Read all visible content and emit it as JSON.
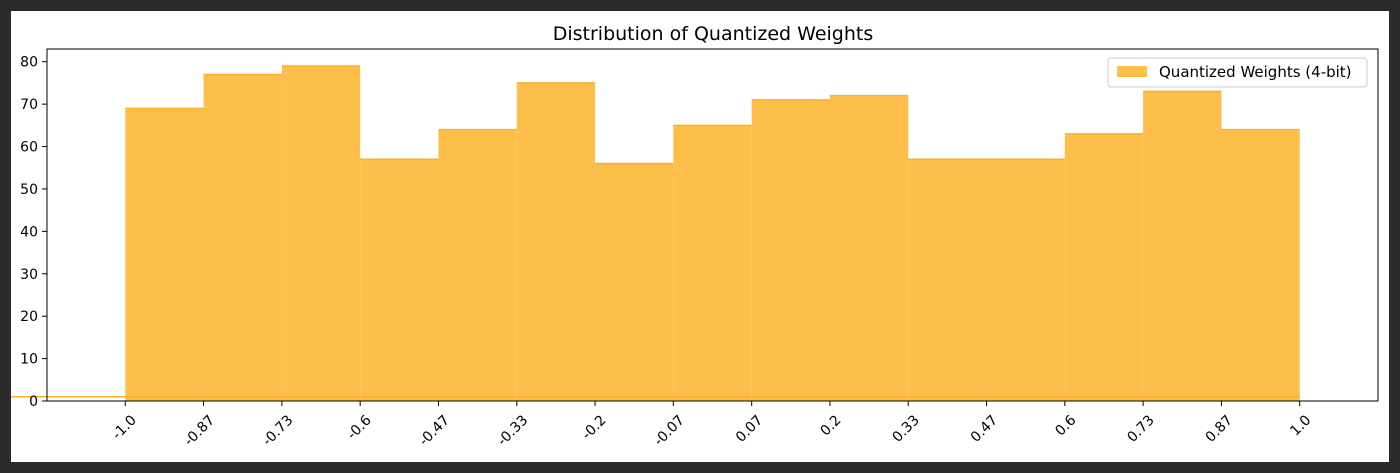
{
  "chart_data": {
    "type": "bar",
    "title": "Distribution of Quantized Weights",
    "xlabel": "",
    "ylabel": "",
    "bin_edges": [
      -1.0,
      -0.8667,
      -0.7333,
      -0.6,
      -0.4667,
      -0.3333,
      -0.2,
      -0.0667,
      0.0667,
      0.2,
      0.3333,
      0.4667,
      0.6,
      0.7333,
      0.8667,
      1.0
    ],
    "values": [
      69,
      77,
      79,
      57,
      64,
      75,
      56,
      65,
      71,
      72,
      57,
      57,
      63,
      73,
      64,
      1
    ],
    "series": [
      {
        "name": "Quantized Weights (4-bit)",
        "values": [
          69,
          77,
          79,
          57,
          64,
          75,
          56,
          65,
          71,
          72,
          57,
          57,
          63,
          73,
          64,
          1
        ]
      }
    ],
    "xticks": [
      -1.0,
      -0.8667,
      -0.7333,
      -0.6,
      -0.4667,
      -0.3333,
      -0.2,
      -0.0667,
      0.0667,
      0.2,
      0.3333,
      0.4667,
      0.6,
      0.7333,
      0.8667,
      1.0
    ],
    "xtick_labels": [
      "-1.0",
      "-0.87",
      "-0.73",
      "-0.6",
      "-0.47",
      "-0.33",
      "-0.2",
      "-0.07",
      "0.07",
      "0.2",
      "0.33",
      "0.47",
      "0.6",
      "0.73",
      "0.87",
      "1.0"
    ],
    "yticks": [
      0,
      10,
      20,
      30,
      40,
      50,
      60,
      70,
      80
    ],
    "ytick_labels": [
      "0",
      "10",
      "20",
      "30",
      "40",
      "50",
      "60",
      "70",
      "80"
    ],
    "xlim": [
      -1.1333,
      1.1333
    ],
    "ylim": [
      0,
      83
    ],
    "grid": false,
    "legend_position": "top-right",
    "bar_color": "#fdbe4a",
    "bar_edge_color": "#fcb02b",
    "axis_color": "#000000"
  }
}
